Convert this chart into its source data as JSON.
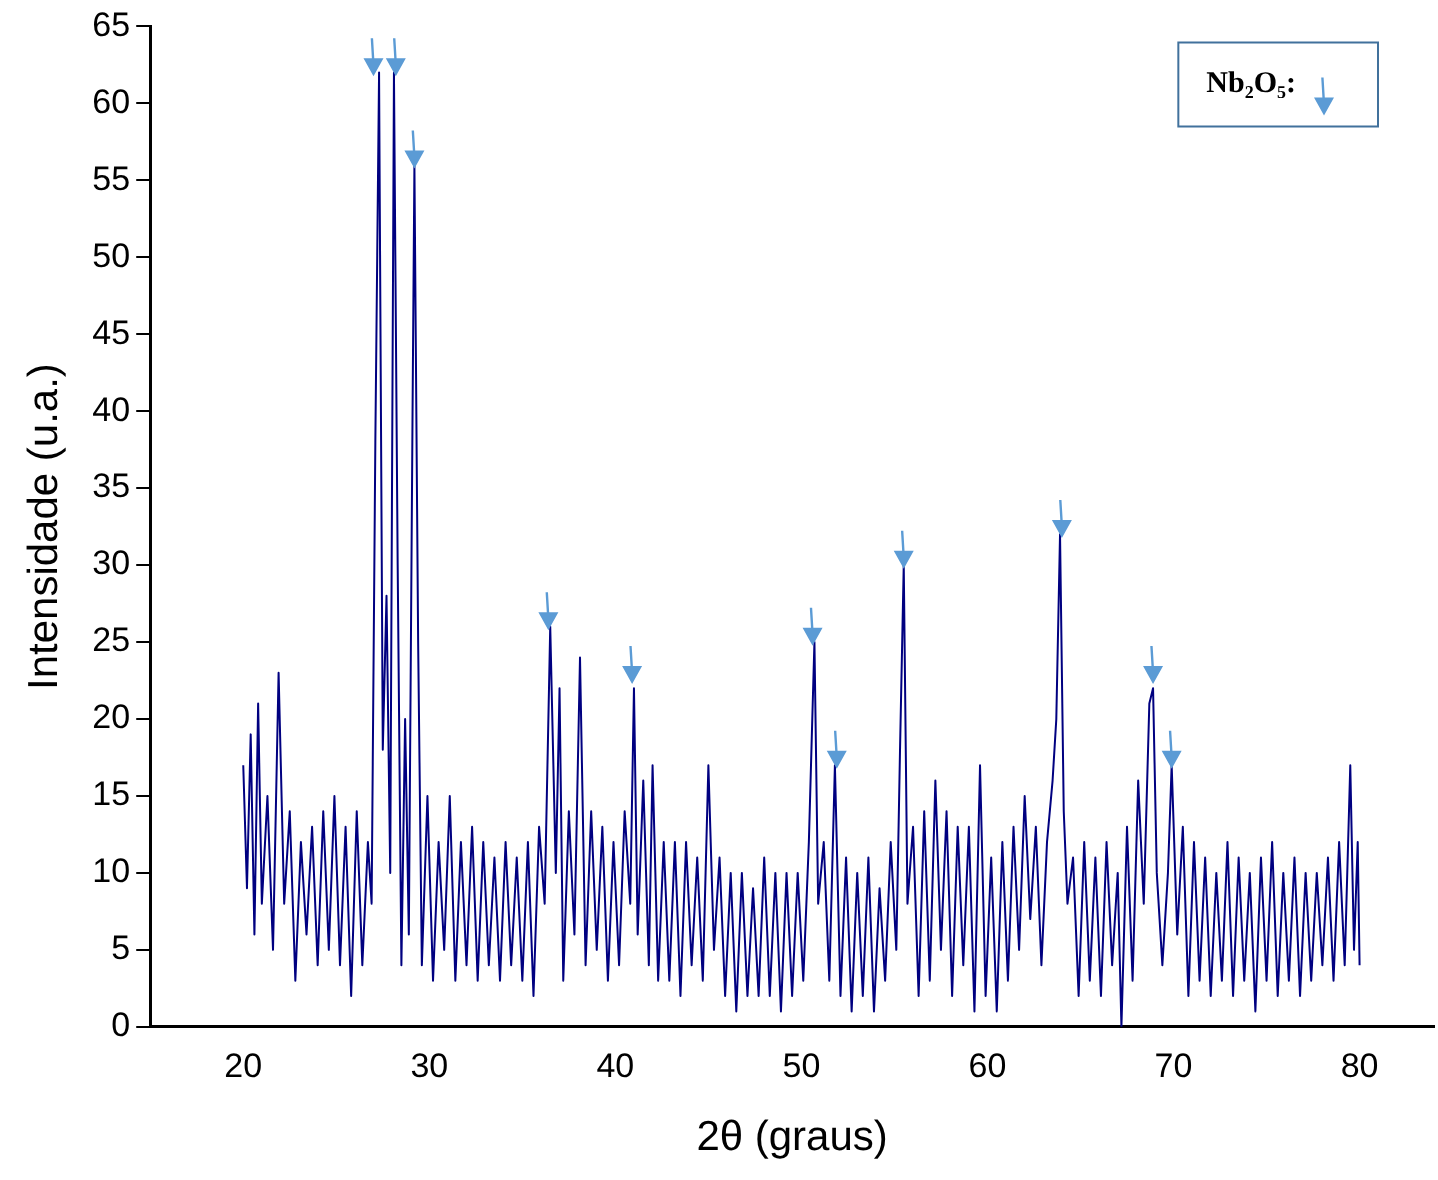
{
  "chart_data": {
    "type": "line",
    "xlabel": "2θ (graus)",
    "ylabel": "Intensidade (u.a.)",
    "xlim": [
      15,
      84
    ],
    "xticks": [
      20,
      30,
      40,
      50,
      60,
      70,
      80
    ],
    "ylim": [
      0,
      65
    ],
    "yticks": [
      0,
      5,
      10,
      15,
      20,
      25,
      30,
      35,
      40,
      45,
      50,
      55,
      60,
      65
    ],
    "grid": false,
    "legend": "top right",
    "series": [
      {
        "type": "line",
        "color": "#000080",
        "x": [
          20.0,
          20.2,
          20.4,
          20.6,
          20.8,
          21.0,
          21.3,
          21.6,
          21.9,
          22.2,
          22.5,
          22.8,
          23.1,
          23.4,
          23.7,
          24.0,
          24.3,
          24.6,
          24.9,
          25.2,
          25.5,
          25.8,
          26.1,
          26.4,
          26.7,
          26.9,
          27.1,
          27.3,
          27.5,
          27.7,
          27.9,
          28.1,
          28.3,
          28.5,
          28.7,
          28.9,
          29.1,
          29.2,
          29.4,
          29.6,
          29.9,
          30.2,
          30.5,
          30.8,
          31.1,
          31.4,
          31.7,
          32.0,
          32.3,
          32.6,
          32.9,
          33.2,
          33.5,
          33.8,
          34.1,
          34.4,
          34.7,
          35.0,
          35.3,
          35.6,
          35.9,
          36.2,
          36.5,
          36.8,
          37.0,
          37.2,
          37.5,
          37.8,
          38.1,
          38.4,
          38.7,
          39.0,
          39.3,
          39.6,
          39.9,
          40.2,
          40.5,
          40.8,
          41.0,
          41.2,
          41.5,
          41.8,
          42.0,
          42.3,
          42.6,
          42.9,
          43.2,
          43.5,
          43.8,
          44.1,
          44.4,
          44.7,
          45.0,
          45.3,
          45.6,
          45.9,
          46.2,
          46.5,
          46.8,
          47.1,
          47.4,
          47.7,
          48.0,
          48.3,
          48.6,
          48.9,
          49.2,
          49.5,
          49.8,
          50.1,
          50.4,
          50.7,
          50.9,
          51.2,
          51.5,
          51.8,
          52.1,
          52.4,
          52.7,
          53.0,
          53.3,
          53.6,
          53.9,
          54.2,
          54.5,
          54.8,
          55.1,
          55.3,
          55.5,
          55.7,
          56.0,
          56.3,
          56.6,
          56.9,
          57.2,
          57.5,
          57.8,
          58.1,
          58.4,
          58.7,
          59.0,
          59.3,
          59.6,
          59.9,
          60.2,
          60.5,
          60.8,
          61.1,
          61.4,
          61.7,
          62.0,
          62.3,
          62.6,
          62.9,
          63.2,
          63.5,
          63.7,
          63.9,
          64.1,
          64.3,
          64.6,
          64.9,
          65.2,
          65.5,
          65.8,
          66.1,
          66.4,
          66.7,
          67.0,
          67.2,
          67.5,
          67.8,
          68.1,
          68.4,
          68.7,
          68.9,
          69.1,
          69.4,
          69.7,
          69.9,
          70.2,
          70.5,
          70.8,
          71.1,
          71.4,
          71.7,
          72.0,
          72.3,
          72.6,
          72.9,
          73.2,
          73.5,
          73.8,
          74.1,
          74.4,
          74.7,
          75.0,
          75.3,
          75.6,
          75.9,
          76.2,
          76.5,
          76.8,
          77.1,
          77.4,
          77.7,
          78.0,
          78.3,
          78.6,
          78.9,
          79.2,
          79.5,
          79.7,
          79.9,
          80.0
        ],
        "values": [
          17,
          9,
          19,
          6,
          21,
          8,
          15,
          5,
          23,
          8,
          14,
          3,
          12,
          6,
          13,
          4,
          14,
          5,
          15,
          4,
          13,
          2,
          14,
          4,
          12,
          8,
          38,
          62,
          18,
          28,
          10,
          62,
          30,
          4,
          20,
          6,
          40,
          56,
          25,
          4,
          15,
          3,
          12,
          5,
          15,
          3,
          12,
          4,
          13,
          3,
          12,
          4,
          11,
          3,
          12,
          4,
          11,
          3,
          12,
          2,
          13,
          8,
          26,
          10,
          22,
          3,
          14,
          6,
          24,
          4,
          14,
          5,
          13,
          3,
          12,
          4,
          14,
          8,
          22,
          6,
          16,
          4,
          17,
          3,
          12,
          3,
          12,
          2,
          12,
          4,
          11,
          3,
          17,
          5,
          11,
          2,
          10,
          1,
          10,
          2,
          9,
          2,
          11,
          2,
          10,
          1,
          10,
          2,
          10,
          3,
          12,
          25,
          8,
          12,
          3,
          17,
          2,
          11,
          1,
          10,
          2,
          11,
          1,
          9,
          3,
          12,
          5,
          18,
          30,
          8,
          13,
          2,
          14,
          3,
          16,
          5,
          14,
          2,
          13,
          4,
          13,
          1,
          17,
          2,
          11,
          1,
          12,
          3,
          13,
          5,
          15,
          7,
          13,
          4,
          12,
          16,
          20,
          32,
          14,
          8,
          11,
          2,
          12,
          3,
          11,
          2,
          12,
          4,
          10,
          0,
          13,
          3,
          16,
          8,
          21,
          22,
          10,
          4,
          10,
          17,
          6,
          13,
          2,
          12,
          3,
          11,
          2,
          10,
          3,
          12,
          2,
          11,
          3,
          10,
          1,
          11,
          3,
          12,
          2,
          10,
          3,
          11,
          2,
          10,
          3,
          10,
          4,
          11,
          3,
          12,
          4,
          17,
          5,
          12,
          4
        ]
      },
      {
        "type": "scatter",
        "name": "Nb₂O₅:",
        "color": "#5b9bd5",
        "x": [
          27.0,
          28.2,
          29.2,
          36.4,
          40.9,
          50.6,
          51.9,
          55.5,
          64.0,
          68.9,
          69.9
        ],
        "values": [
          63,
          63,
          57,
          27,
          23.5,
          26,
          18,
          31,
          33,
          23.5,
          18
        ]
      }
    ]
  }
}
